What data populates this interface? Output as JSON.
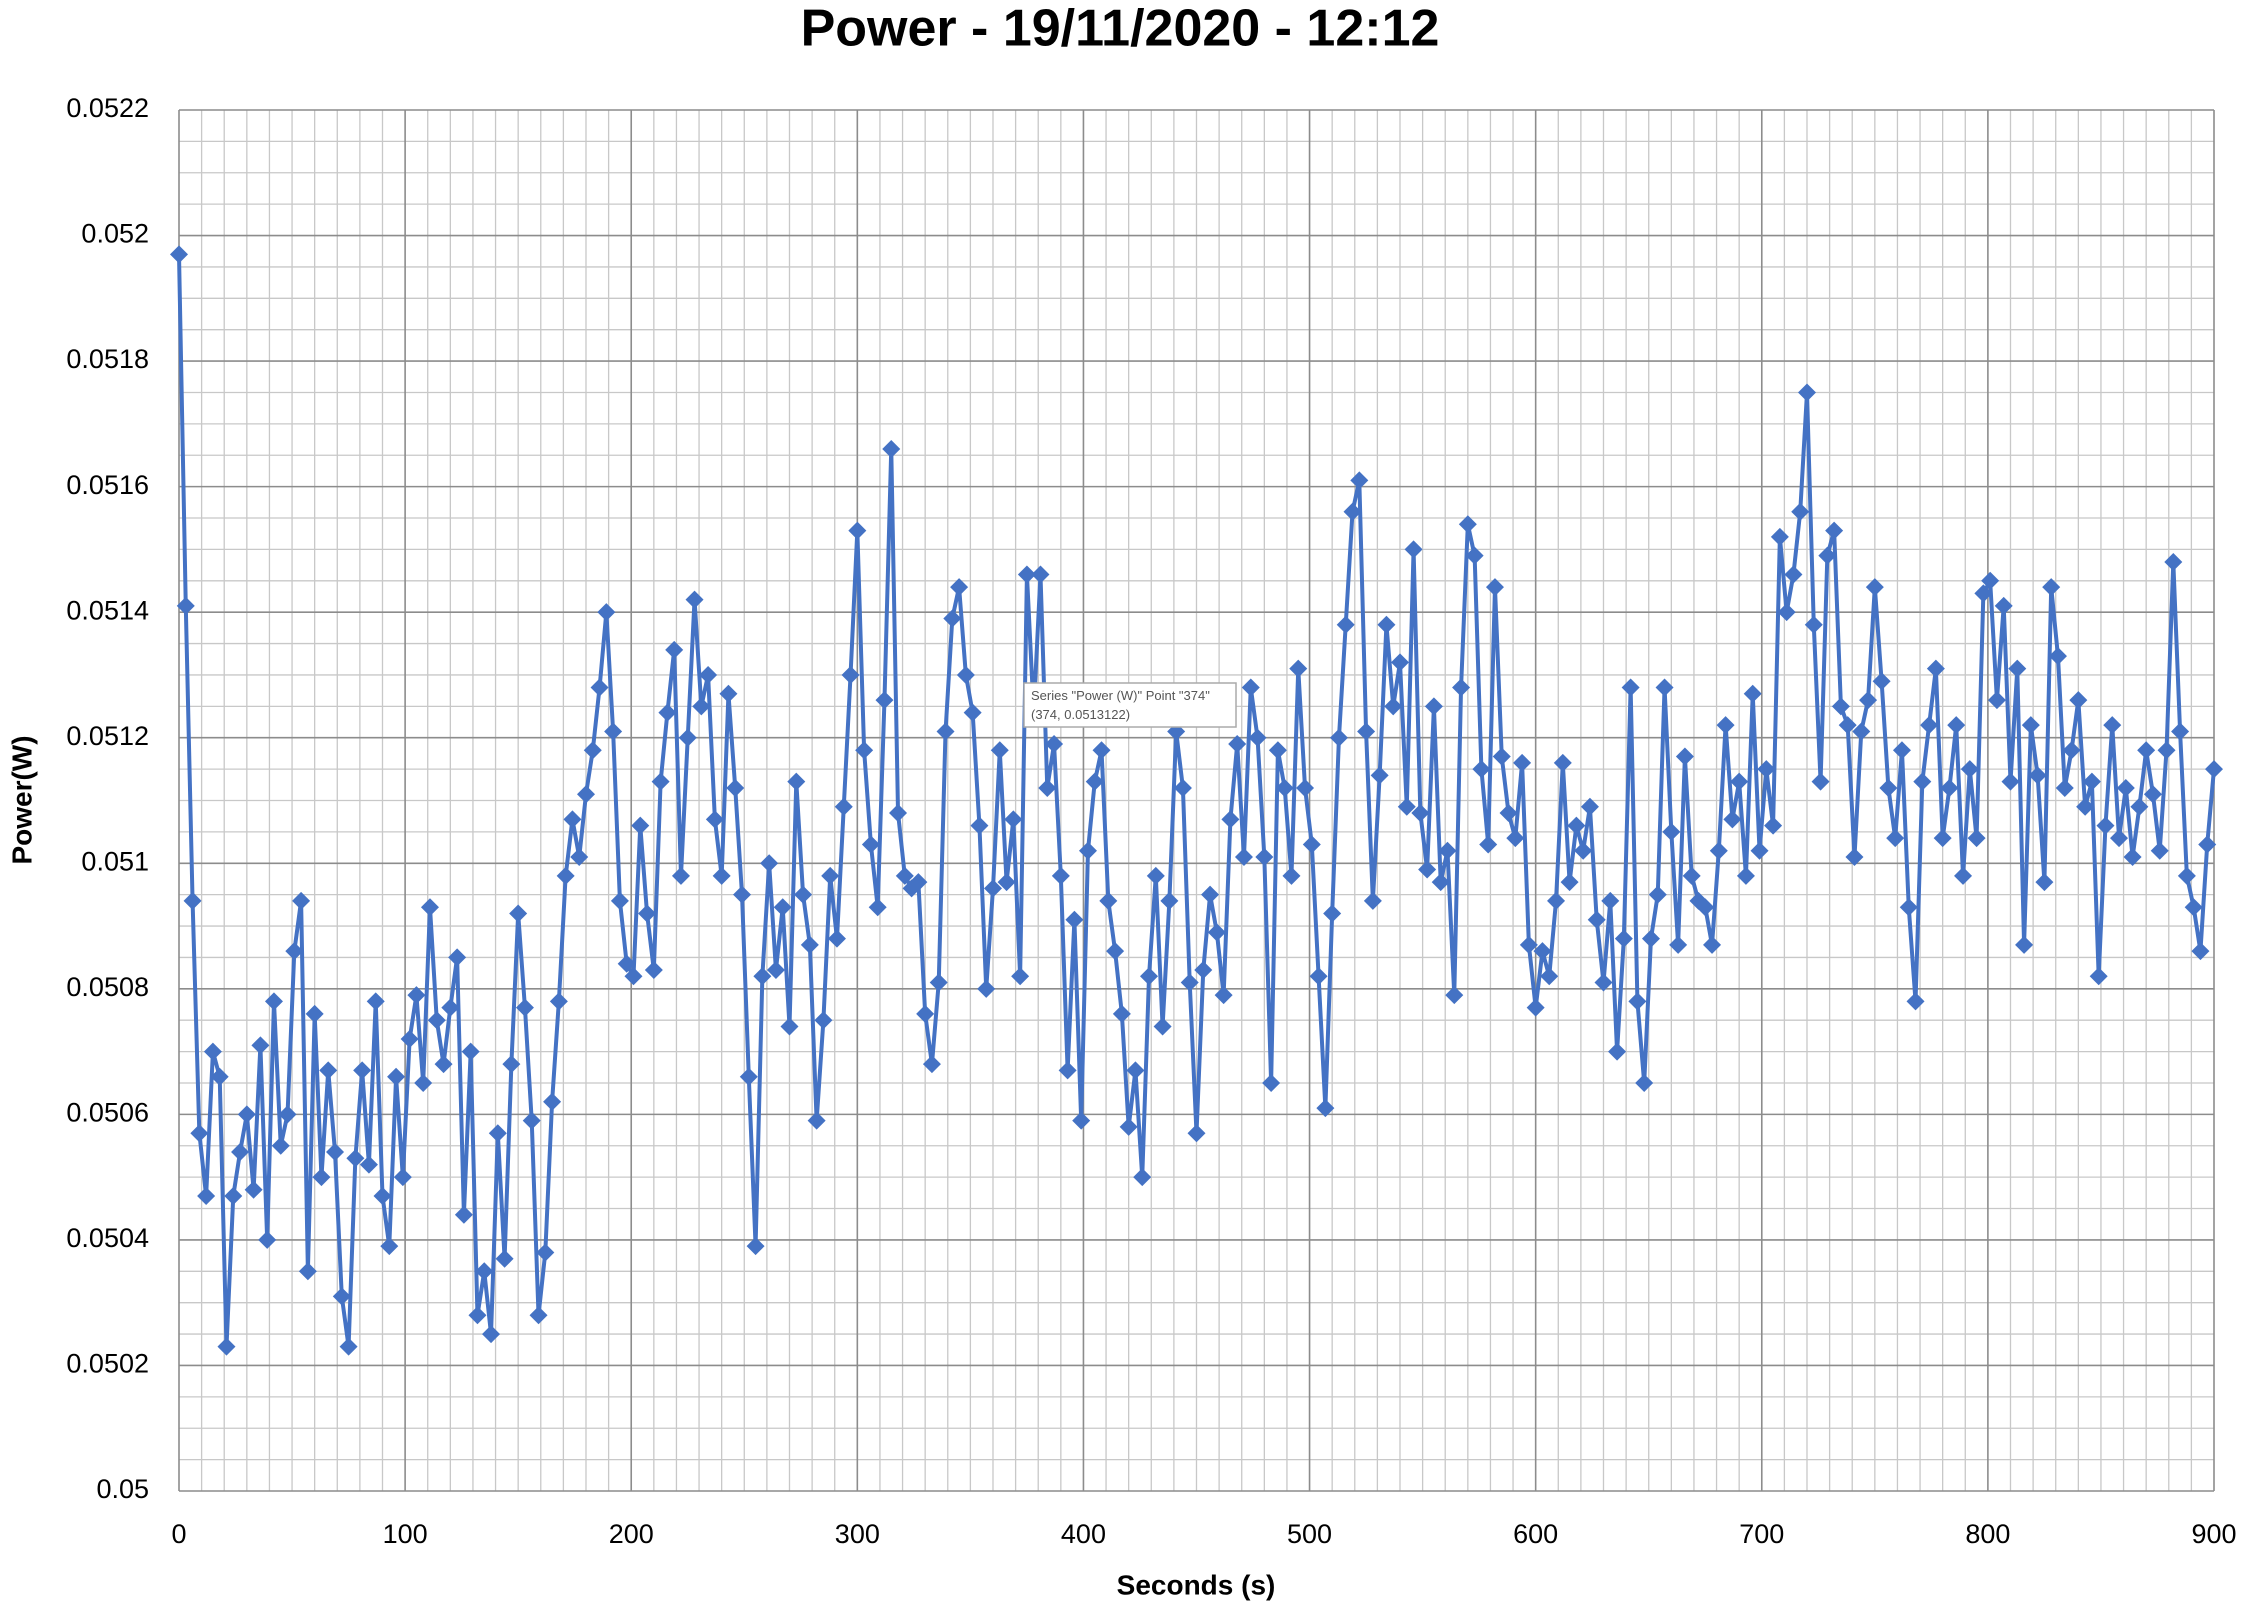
{
  "chart_data": {
    "type": "line",
    "title": "Power - 19/11/2020 - 12:12",
    "x_label": "Seconds (s)",
    "y_label": "Power(W)",
    "color": "#4472c4",
    "marker": "diamond",
    "grid": true,
    "minor_grid": true,
    "xlim": [
      0,
      900
    ],
    "xticks": [
      0,
      100,
      200,
      300,
      400,
      500,
      600,
      700,
      800,
      900
    ],
    "ylim": [
      0.05,
      0.0522
    ],
    "yticks": [
      0.05,
      0.0502,
      0.0504,
      0.0506,
      0.0508,
      0.051,
      0.0512,
      0.0514,
      0.0516,
      0.0518,
      0.052,
      0.0522
    ],
    "tooltip": [
      "Series \"Power (W)\" Point \"374\"",
      "(374, 0.0513122)"
    ],
    "x": [
      0,
      3,
      6,
      9,
      12,
      15,
      18,
      21,
      24,
      27,
      30,
      33,
      36,
      39,
      42,
      45,
      48,
      51,
      54,
      57,
      60,
      63,
      66,
      69,
      72,
      75,
      78,
      81,
      84,
      87,
      90,
      93,
      96,
      99,
      102,
      105,
      108,
      111,
      114,
      117,
      120,
      123,
      126,
      129,
      132,
      135,
      138,
      141,
      144,
      147,
      150,
      153,
      156,
      159,
      162,
      165,
      168,
      171,
      174,
      177,
      180,
      183,
      186,
      189,
      192,
      195,
      198,
      201,
      204,
      207,
      210,
      213,
      216,
      219,
      222,
      225,
      228,
      231,
      234,
      237,
      240,
      243,
      246,
      249,
      252,
      255,
      258,
      261,
      264,
      267,
      270,
      273,
      276,
      279,
      282,
      285,
      288,
      291,
      294,
      297,
      300,
      303,
      306,
      309,
      312,
      315,
      318,
      321,
      324,
      327,
      330,
      333,
      336,
      339,
      342,
      345,
      348,
      351,
      354,
      357,
      360,
      363,
      366,
      369,
      372,
      375,
      378,
      381,
      384,
      387,
      390,
      393,
      396,
      399,
      402,
      405,
      408,
      411,
      414,
      417,
      420,
      423,
      426,
      429,
      432,
      435,
      438,
      441,
      444,
      447,
      450,
      453,
      456,
      459,
      462,
      465,
      468,
      471,
      474,
      477,
      480,
      483,
      486,
      489,
      492,
      495,
      498,
      501,
      504,
      507,
      510,
      513,
      516,
      519,
      522,
      525,
      528,
      531,
      534,
      537,
      540,
      543,
      546,
      549,
      552,
      555,
      558,
      561,
      564,
      567,
      570,
      573,
      576,
      579,
      582,
      585,
      588,
      591,
      594,
      597,
      600,
      603,
      606,
      609,
      612,
      615,
      618,
      621,
      624,
      627,
      630,
      633,
      636,
      639,
      642,
      645,
      648,
      651,
      654,
      657,
      660,
      663,
      666,
      669,
      672,
      675,
      678,
      681,
      684,
      687,
      690,
      693,
      696,
      699,
      702,
      705,
      708,
      711,
      714,
      717,
      720,
      723,
      726,
      729,
      732,
      735,
      738,
      741,
      744,
      747,
      750,
      753,
      756,
      759,
      762,
      765,
      768,
      771,
      774,
      777,
      780,
      783,
      786,
      789,
      792,
      795,
      798,
      801,
      804,
      807,
      810,
      813,
      816,
      819,
      822,
      825,
      828,
      831,
      834,
      837,
      840,
      843,
      846,
      849,
      852,
      855,
      858,
      861,
      864,
      867,
      870,
      873,
      876,
      879,
      882,
      885,
      888,
      891,
      894,
      897,
      900
    ],
    "values": [
      0.05197,
      0.05141,
      0.05094,
      0.05057,
      0.05047,
      0.0507,
      0.05066,
      0.05023,
      0.05047,
      0.05054,
      0.0506,
      0.05048,
      0.05071,
      0.0504,
      0.05078,
      0.05055,
      0.0506,
      0.05086,
      0.05094,
      0.05035,
      0.05076,
      0.0505,
      0.05067,
      0.05054,
      0.05031,
      0.05023,
      0.05053,
      0.05067,
      0.05052,
      0.05078,
      0.05047,
      0.05039,
      0.05066,
      0.0505,
      0.05072,
      0.05079,
      0.05065,
      0.05093,
      0.05075,
      0.05068,
      0.05077,
      0.05085,
      0.05044,
      0.0507,
      0.05028,
      0.05035,
      0.05025,
      0.05057,
      0.05037,
      0.05068,
      0.05092,
      0.05077,
      0.05059,
      0.05028,
      0.05038,
      0.05062,
      0.05078,
      0.05098,
      0.05107,
      0.05101,
      0.05111,
      0.05118,
      0.05128,
      0.0514,
      0.05121,
      0.05094,
      0.05084,
      0.05082,
      0.05106,
      0.05092,
      0.05083,
      0.05113,
      0.05124,
      0.05134,
      0.05098,
      0.0512,
      0.05142,
      0.05125,
      0.0513,
      0.05107,
      0.05098,
      0.05127,
      0.05112,
      0.05095,
      0.05066,
      0.05039,
      0.05082,
      0.051,
      0.05083,
      0.05093,
      0.05074,
      0.05113,
      0.05095,
      0.05087,
      0.05059,
      0.05075,
      0.05098,
      0.05088,
      0.05109,
      0.0513,
      0.05153,
      0.05118,
      0.05103,
      0.05093,
      0.05126,
      0.05166,
      0.05108,
      0.05098,
      0.05096,
      0.05097,
      0.05076,
      0.05068,
      0.05081,
      0.05121,
      0.05139,
      0.05144,
      0.0513,
      0.05124,
      0.05106,
      0.0508,
      0.05096,
      0.05118,
      0.05097,
      0.05107,
      0.05082,
      0.05146,
      0.05124,
      0.05146,
      0.05112,
      0.05119,
      0.05098,
      0.05067,
      0.05091,
      0.05059,
      0.05102,
      0.05113,
      0.05118,
      0.05094,
      0.05086,
      0.05076,
      0.05058,
      0.05067,
      0.0505,
      0.05082,
      0.05098,
      0.05074,
      0.05094,
      0.05121,
      0.05112,
      0.05081,
      0.05057,
      0.05083,
      0.05095,
      0.05089,
      0.05079,
      0.05107,
      0.05119,
      0.05101,
      0.05128,
      0.0512,
      0.05101,
      0.05065,
      0.05118,
      0.05112,
      0.05098,
      0.05131,
      0.05112,
      0.05103,
      0.05082,
      0.05061,
      0.05092,
      0.0512,
      0.05138,
      0.05156,
      0.05161,
      0.05121,
      0.05094,
      0.05114,
      0.05138,
      0.05125,
      0.05132,
      0.05109,
      0.0515,
      0.05108,
      0.05099,
      0.05125,
      0.05097,
      0.05102,
      0.05079,
      0.05128,
      0.05154,
      0.05149,
      0.05115,
      0.05103,
      0.05144,
      0.05117,
      0.05108,
      0.05104,
      0.05116,
      0.05087,
      0.05077,
      0.05086,
      0.05082,
      0.05094,
      0.05116,
      0.05097,
      0.05106,
      0.05102,
      0.05109,
      0.05091,
      0.05081,
      0.05094,
      0.0507,
      0.05088,
      0.05128,
      0.05078,
      0.05065,
      0.05088,
      0.05095,
      0.05128,
      0.05105,
      0.05087,
      0.05117,
      0.05098,
      0.05094,
      0.05093,
      0.05087,
      0.05102,
      0.05122,
      0.05107,
      0.05113,
      0.05098,
      0.05127,
      0.05102,
      0.05115,
      0.05106,
      0.05152,
      0.0514,
      0.05146,
      0.05156,
      0.05175,
      0.05138,
      0.05113,
      0.05149,
      0.05153,
      0.05125,
      0.05122,
      0.05101,
      0.05121,
      0.05126,
      0.05144,
      0.05129,
      0.05112,
      0.05104,
      0.05118,
      0.05093,
      0.05078,
      0.05113,
      0.05122,
      0.05131,
      0.05104,
      0.05112,
      0.05122,
      0.05098,
      0.05115,
      0.05104,
      0.05143,
      0.05145,
      0.05126,
      0.05141,
      0.05113,
      0.05131,
      0.05087,
      0.05122,
      0.05114,
      0.05097,
      0.05144,
      0.05133,
      0.05112,
      0.05118,
      0.05126,
      0.05109,
      0.05113,
      0.05082,
      0.05106,
      0.05122,
      0.05104,
      0.05112,
      0.05101,
      0.05109,
      0.05118,
      0.05111,
      0.05102,
      0.05118,
      0.05148,
      0.05121,
      0.05098,
      0.05093,
      0.05086,
      0.05103,
      0.05115
    ]
  }
}
